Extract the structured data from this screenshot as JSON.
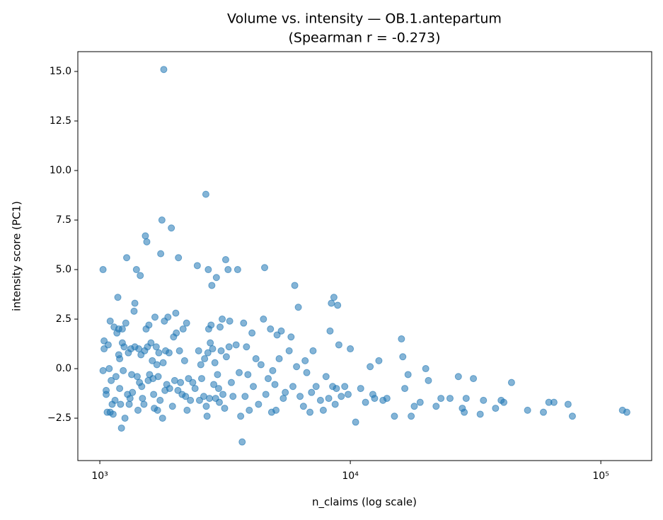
{
  "chart_data": {
    "type": "scatter",
    "title": "Volume vs. intensity — OB.1.antepartum",
    "subtitle": "(Spearman r = -0.273)",
    "x_label": "n_claims (log scale)",
    "y_label": "intensity score (PC1)",
    "x_scale": "log",
    "color": "#1f77b4",
    "xlim": [
      817,
      159600
    ],
    "ylim": [
      -4.64,
      16.0
    ],
    "xticks": [
      {
        "value": 1000,
        "label": "10³"
      },
      {
        "value": 10000,
        "label": "10⁴"
      },
      {
        "value": 100000,
        "label": "10⁵"
      }
    ],
    "yticks": [
      {
        "value": -2.5,
        "label": "−2.5"
      },
      {
        "value": 0,
        "label": "0.0"
      },
      2.5,
      {
        "value": 5,
        "label": "5.0"
      },
      7.5,
      {
        "value": 10,
        "label": "10.0"
      },
      12.5,
      {
        "value": 15,
        "label": "15.0"
      }
    ],
    "x": [
      1030,
      1030,
      1040,
      1040,
      1060,
      1060,
      1070,
      1080,
      1090,
      1100,
      1100,
      1110,
      1120,
      1130,
      1140,
      1150,
      1160,
      1170,
      1180,
      1190,
      1190,
      1200,
      1200,
      1210,
      1220,
      1230,
      1230,
      1240,
      1250,
      1260,
      1270,
      1280,
      1290,
      1300,
      1310,
      1320,
      1330,
      1340,
      1350,
      1370,
      1380,
      1380,
      1400,
      1410,
      1420,
      1430,
      1440,
      1450,
      1460,
      1470,
      1480,
      1500,
      1510,
      1520,
      1530,
      1540,
      1550,
      1560,
      1570,
      1580,
      1600,
      1620,
      1630,
      1640,
      1650,
      1660,
      1680,
      1690,
      1700,
      1710,
      1720,
      1740,
      1750,
      1770,
      1780,
      1790,
      1800,
      1810,
      1820,
      1830,
      1850,
      1870,
      1890,
      1900,
      1930,
      1950,
      1970,
      1990,
      2010,
      2020,
      2050,
      2060,
      2080,
      2100,
      2130,
      2150,
      2180,
      2200,
      2220,
      2230,
      2260,
      2300,
      2350,
      2400,
      2450,
      2480,
      2500,
      2530,
      2550,
      2600,
      2620,
      2650,
      2660,
      2680,
      2700,
      2710,
      2720,
      2740,
      2760,
      2780,
      2800,
      2820,
      2850,
      2880,
      2900,
      2920,
      2950,
      2980,
      3000,
      3020,
      3050,
      3080,
      3100,
      3150,
      3180,
      3200,
      3250,
      3280,
      3300,
      3350,
      3400,
      3500,
      3550,
      3600,
      3650,
      3700,
      3750,
      3800,
      3850,
      3900,
      3950,
      4050,
      4100,
      4200,
      4300,
      4400,
      4500,
      4550,
      4600,
      4700,
      4800,
      4850,
      4900,
      5000,
      5050,
      5100,
      5200,
      5300,
      5400,
      5500,
      5700,
      5800,
      5900,
      6000,
      6100,
      6200,
      6300,
      6500,
      6600,
      6700,
      6900,
      7000,
      7100,
      7300,
      7600,
      7800,
      8000,
      8200,
      8300,
      8400,
      8500,
      8600,
      8700,
      8800,
      8900,
      9000,
      9200,
      9500,
      9800,
      10000,
      10500,
      11000,
      11500,
      12000,
      12300,
      12500,
      13000,
      13500,
      14000,
      15000,
      16000,
      16200,
      16500,
      17000,
      17500,
      18000,
      19000,
      20000,
      20500,
      22000,
      23000,
      25000,
      27000,
      28000,
      28500,
      29000,
      31000,
      33000,
      34000,
      38000,
      40000,
      41000,
      44000,
      51000,
      59000,
      62000,
      65000,
      74000,
      77000,
      122000,
      127000
    ],
    "values": [
      5.0,
      -0.1,
      1.4,
      1.0,
      -1.1,
      -1.3,
      -2.2,
      1.2,
      0.0,
      2.4,
      -2.2,
      -0.6,
      -1.8,
      -2.3,
      2.1,
      -1.6,
      -0.4,
      1.8,
      3.6,
      2.0,
      0.7,
      0.5,
      -1.0,
      -1.8,
      -3.0,
      2.0,
      1.3,
      -0.1,
      1.1,
      -2.5,
      2.3,
      5.6,
      -1.3,
      0.8,
      -1.8,
      -1.5,
      1.0,
      -0.3,
      -1.2,
      2.9,
      3.3,
      1.1,
      5.0,
      -0.4,
      -2.1,
      1.0,
      -0.7,
      4.7,
      0.7,
      -0.9,
      -1.5,
      -1.8,
      0.9,
      6.7,
      2.0,
      6.4,
      1.1,
      -0.6,
      2.2,
      -0.3,
      1.3,
      0.4,
      -0.5,
      -1.3,
      -2.0,
      2.6,
      1.1,
      0.2,
      -2.1,
      -0.4,
      0.8,
      -1.6,
      5.8,
      7.5,
      -2.5,
      0.3,
      15.1,
      2.4,
      -1.1,
      0.9,
      -0.8,
      2.6,
      0.8,
      -1.0,
      7.1,
      -1.9,
      1.6,
      -0.6,
      2.8,
      1.8,
      -1.1,
      5.6,
      0.9,
      -0.7,
      -1.3,
      2.0,
      0.4,
      -1.4,
      2.3,
      -2.1,
      -0.5,
      -1.6,
      -0.7,
      -1.0,
      5.2,
      0.9,
      -1.6,
      0.2,
      -0.5,
      -1.4,
      0.5,
      8.8,
      -1.9,
      -2.4,
      0.8,
      5.0,
      2.0,
      -1.5,
      1.3,
      2.2,
      4.2,
      1.0,
      -0.8,
      0.3,
      -1.5,
      4.6,
      -0.3,
      -1.0,
      -1.7,
      2.1,
      0.9,
      2.5,
      -1.3,
      -2.0,
      5.5,
      0.6,
      5.0,
      1.1,
      2.4,
      -0.7,
      -1.4,
      1.2,
      5.0,
      -0.2,
      -2.4,
      -3.7,
      2.3,
      -1.4,
      1.1,
      -0.3,
      -2.1,
      1.8,
      -0.9,
      0.5,
      -1.8,
      0.2,
      2.5,
      5.1,
      -1.3,
      -0.5,
      2.0,
      -2.2,
      -0.1,
      -0.8,
      -2.1,
      1.7,
      0.5,
      1.9,
      -1.5,
      -1.2,
      0.9,
      1.6,
      -0.9,
      4.2,
      0.1,
      3.1,
      -1.4,
      -1.9,
      0.4,
      -0.2,
      -2.2,
      -1.2,
      0.9,
      -0.9,
      -1.6,
      -2.1,
      -0.4,
      -1.5,
      1.9,
      3.3,
      -0.9,
      3.6,
      -1.8,
      -1.0,
      3.2,
      1.2,
      -1.4,
      -0.9,
      -1.3,
      1.0,
      -2.7,
      -1.0,
      -1.7,
      0.1,
      -1.3,
      -1.5,
      0.4,
      -1.6,
      -1.5,
      -2.4,
      1.5,
      0.6,
      -1.0,
      -0.3,
      -2.4,
      -1.9,
      -1.7,
      0.0,
      -0.6,
      -1.9,
      -1.5,
      -1.5,
      -0.4,
      -2.0,
      -2.2,
      -1.5,
      -0.5,
      -2.3,
      -1.6,
      -2.0,
      -1.6,
      -1.7,
      -0.7,
      -2.1,
      -2.2,
      -1.7,
      -1.7,
      -1.8,
      -2.4,
      -2.1,
      -2.2
    ]
  }
}
